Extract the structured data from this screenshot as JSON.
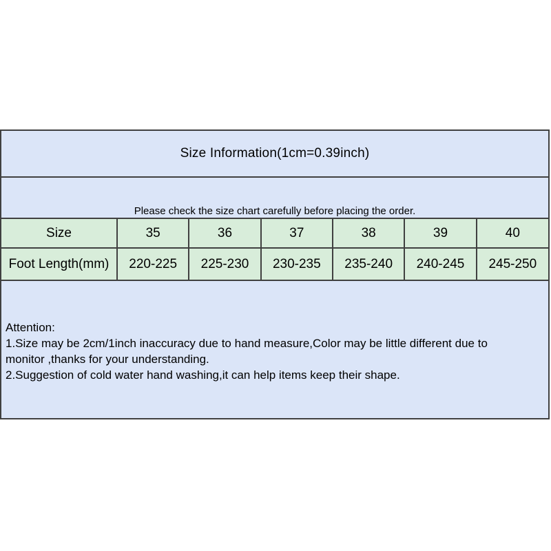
{
  "panel": {
    "title": "Size Information(1cm=0.39inch)",
    "notice": "Please check the size chart carefully before placing the order.",
    "table": {
      "rows": [
        {
          "header": "Size",
          "cells": [
            "35",
            "36",
            "37",
            "38",
            "39",
            "40"
          ]
        },
        {
          "header": "Foot Length(mm)",
          "cells": [
            "220-225",
            "225-230",
            "230-235",
            "235-240",
            "240-245",
            "245-250"
          ]
        }
      ]
    },
    "attention": {
      "heading": "Attention:",
      "lines": [
        "1.Size may be 2cm/1inch inaccuracy due to hand measure,Color may be little different due to",
        "monitor ,thanks for your understanding.",
        "2.Suggestion of cold water hand washing,it can help items keep their shape."
      ]
    },
    "colors": {
      "section_blue": "#dbe5f8",
      "table_green": "#d8edda",
      "border": "#404040"
    }
  }
}
